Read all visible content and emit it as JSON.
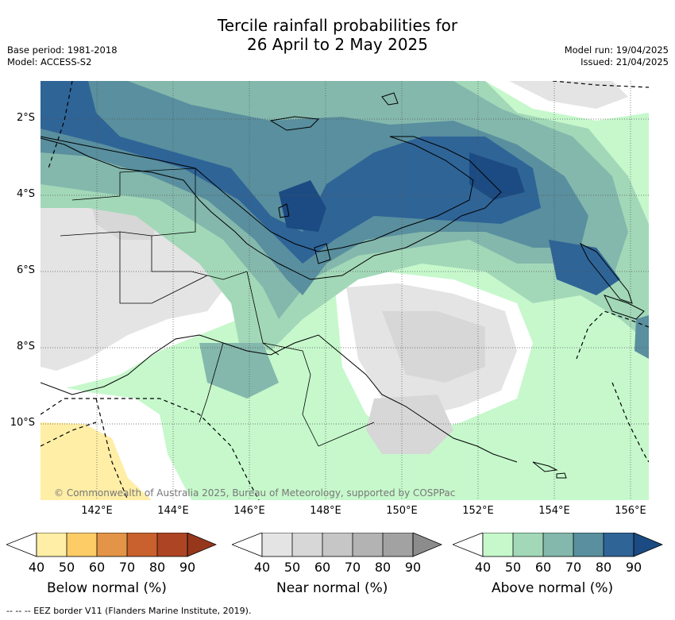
{
  "header": {
    "title_line1": "Tercile rainfall probabilities for",
    "title_line2": "26 April to 2 May 2025",
    "base_period": "Base period: 1981-2018",
    "model": "Model: ACCESS-S2",
    "model_run": "Model run: 19/04/2025",
    "issued": "Issued: 21/04/2025"
  },
  "map": {
    "copyright": "© Commonwealth of Australia 2025, Bureau of Meteorology, supported by COSPPac",
    "lon_labels": [
      "142°E",
      "144°E",
      "146°E",
      "148°E",
      "150°E",
      "152°E",
      "154°E",
      "156°E"
    ],
    "lat_labels": [
      "2°S",
      "4°S",
      "6°S",
      "8°S",
      "10°S"
    ]
  },
  "legend": {
    "below": {
      "caption": "Below normal (%)",
      "ticks": [
        "40",
        "50",
        "60",
        "70",
        "80",
        "90"
      ],
      "colors": [
        "#ffeea6",
        "#fdcc66",
        "#e39447",
        "#c8612e",
        "#ad4524",
        "#96371c"
      ]
    },
    "near": {
      "caption": "Near normal (%)",
      "ticks": [
        "40",
        "50",
        "60",
        "70",
        "80",
        "90"
      ],
      "colors": [
        "#e4e4e4",
        "#d7d7d7",
        "#c6c6c6",
        "#b3b3b3",
        "#a2a2a2",
        "#8c8c8c"
      ]
    },
    "above": {
      "caption": "Above normal (%)",
      "ticks": [
        "40",
        "50",
        "60",
        "70",
        "80",
        "90"
      ],
      "colors": [
        "#c6f8cc",
        "#a2d8b8",
        "#84b8ac",
        "#598f9e",
        "#2f6497",
        "#1b4b82"
      ]
    }
  },
  "footer": {
    "eez_note": "-- -- -- EEZ border V11 (Flanders Marine Institute, 2019)."
  }
}
